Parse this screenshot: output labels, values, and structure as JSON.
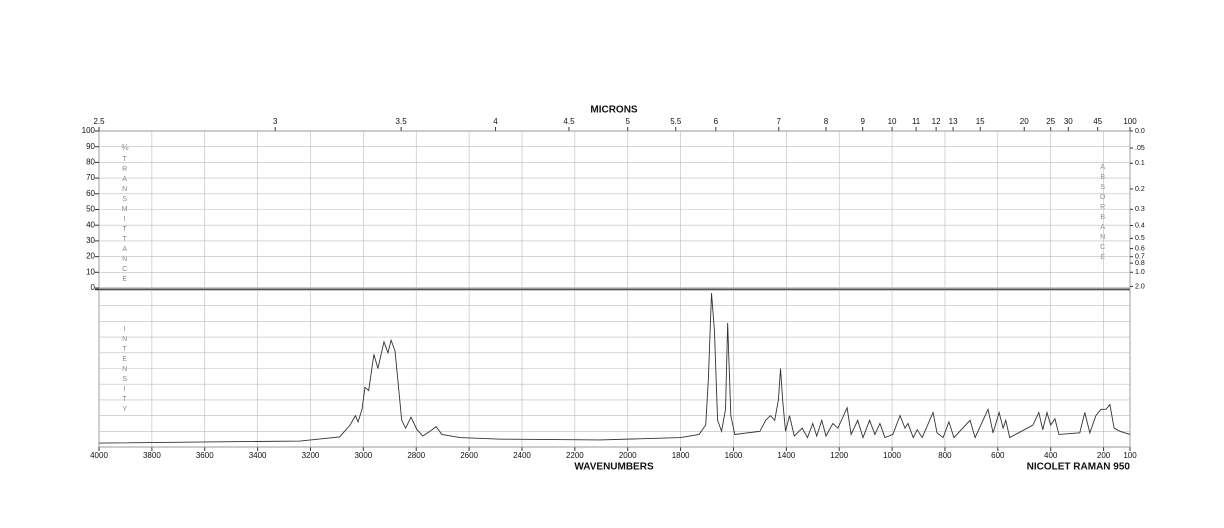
{
  "chart_data": {
    "type": "line",
    "x2_label": "MICRONS",
    "x_label": "WAVENUMBERS",
    "instrument": "NICOLET RAMAN 950",
    "y_label_symbol": "%",
    "y_label": "TRANSMITTANCE",
    "intensity_label": "INTENSITY",
    "y2_label": "ABSORBANCE",
    "xlim": [
      4000,
      100
    ],
    "xticks": [
      4000,
      3800,
      3600,
      3400,
      3200,
      3000,
      2800,
      2600,
      2400,
      2200,
      2000,
      1800,
      1600,
      1400,
      1200,
      1000,
      800,
      600,
      400,
      200,
      100
    ],
    "x2ticks": [
      2.5,
      3,
      3.5,
      4,
      4.5,
      5,
      5.5,
      6,
      7,
      8,
      9,
      10,
      11,
      12,
      13,
      15,
      20,
      25,
      30,
      45,
      100
    ],
    "ylim": [
      0,
      100
    ],
    "yticks": [
      0,
      10,
      20,
      30,
      40,
      50,
      60,
      70,
      80,
      90,
      100
    ],
    "y2ticks": [
      {
        "value": 0.0,
        "label": "0.0"
      },
      {
        "value": 0.05,
        "label": ".05"
      },
      0.1,
      0.2,
      0.3,
      0.4,
      0.5,
      0.6,
      0.7,
      0.8,
      {
        "value": 1.0,
        "label": "1.0"
      },
      {
        "value": 2.0,
        "label": "2.0"
      }
    ],
    "intensity_lim": [
      0,
      100
    ],
    "grid": true,
    "x": [
      4000,
      3240,
      3090,
      3050,
      3030,
      3020,
      3005,
      2994,
      2980,
      2960,
      2945,
      2922,
      2907,
      2895,
      2880,
      2855,
      2840,
      2820,
      2797,
      2775,
      2748,
      2725,
      2703,
      2635,
      2480,
      2105,
      1800,
      1730,
      1705,
      1695,
      1683,
      1672,
      1660,
      1645,
      1630,
      1622,
      1610,
      1595,
      1500,
      1478,
      1460,
      1444,
      1430,
      1422,
      1414,
      1403,
      1388,
      1370,
      1340,
      1320,
      1300,
      1285,
      1266,
      1250,
      1224,
      1205,
      1170,
      1155,
      1130,
      1110,
      1085,
      1065,
      1046,
      1027,
      997,
      970,
      951,
      940,
      920,
      905,
      886,
      845,
      830,
      807,
      785,
      766,
      705,
      686,
      637,
      618,
      595,
      580,
      570,
      555,
      467,
      445,
      430,
      414,
      400,
      384,
      369,
      290,
      271,
      252,
      229,
      210,
      191,
      176,
      160,
      138,
      100
    ],
    "series": [
      {
        "color": "#333333",
        "values": [
          2.5,
          3.8,
          6.4,
          14,
          20,
          16,
          24,
          38,
          36,
          59,
          50,
          67,
          60,
          68,
          61,
          17,
          12,
          19,
          11,
          7,
          10,
          13,
          8,
          6,
          5,
          4.5,
          6,
          8,
          14,
          43,
          98,
          74,
          17,
          10,
          24,
          79,
          20,
          8,
          10,
          17,
          20,
          17,
          30,
          50,
          30,
          10,
          20,
          7,
          12,
          6,
          15,
          7,
          17,
          7,
          15,
          12,
          25,
          8,
          17,
          6,
          17,
          8,
          15,
          6,
          8,
          20,
          12,
          15,
          6,
          11,
          6,
          22,
          9,
          6,
          16,
          6,
          17,
          6,
          24,
          9,
          22,
          12,
          17,
          6,
          14,
          22,
          11,
          22,
          14,
          18,
          8,
          9,
          22,
          9,
          20,
          24,
          24,
          27,
          12,
          10,
          8
        ]
      }
    ]
  }
}
